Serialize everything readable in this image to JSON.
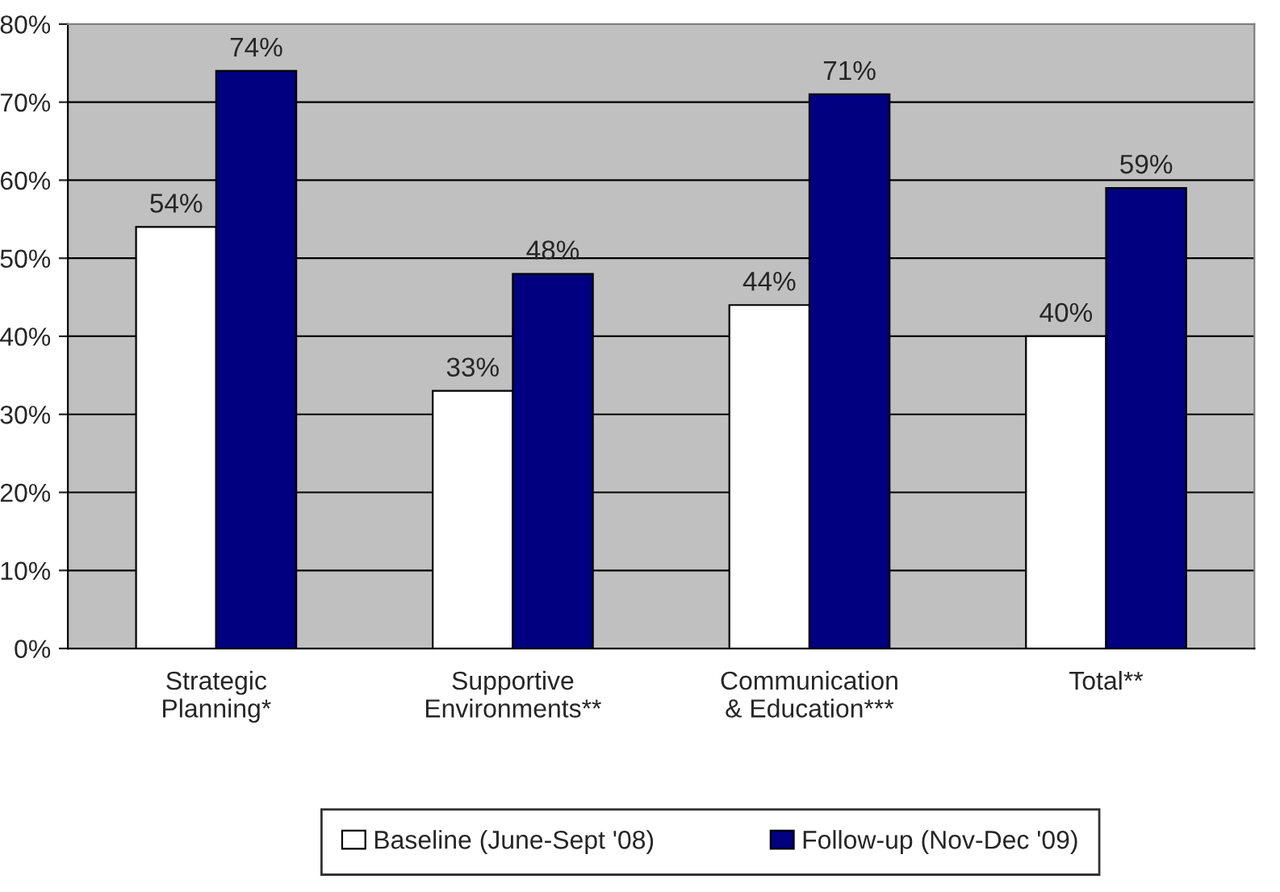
{
  "chart_data": {
    "type": "bar",
    "categories": [
      "Strategic\nPlanning*",
      "Supportive\nEnvironments**",
      "Communication\n& Education***",
      "Total**"
    ],
    "series": [
      {
        "name": "Baseline (June-Sept '08)",
        "color": "#ffffff",
        "values": [
          54,
          33,
          44,
          40
        ],
        "value_labels": [
          "54%",
          "33%",
          "44%",
          "40%"
        ]
      },
      {
        "name": "Follow-up (Nov-Dec '09)",
        "color": "#000080",
        "values": [
          74,
          48,
          71,
          59
        ],
        "value_labels": [
          "74%",
          "48%",
          "71%",
          "59%"
        ]
      }
    ],
    "ylim": [
      0,
      80
    ],
    "yticks": [
      {
        "value": 0,
        "label": "0%"
      },
      {
        "value": 10,
        "label": "10%"
      },
      {
        "value": 20,
        "label": "20%"
      },
      {
        "value": 30,
        "label": "30%"
      },
      {
        "value": 40,
        "label": "40%"
      },
      {
        "value": 50,
        "label": "50%"
      },
      {
        "value": 60,
        "label": "60%"
      },
      {
        "value": 70,
        "label": "70%"
      },
      {
        "value": 80,
        "label": "80%"
      }
    ],
    "grid": "y",
    "legend": "bottom"
  }
}
